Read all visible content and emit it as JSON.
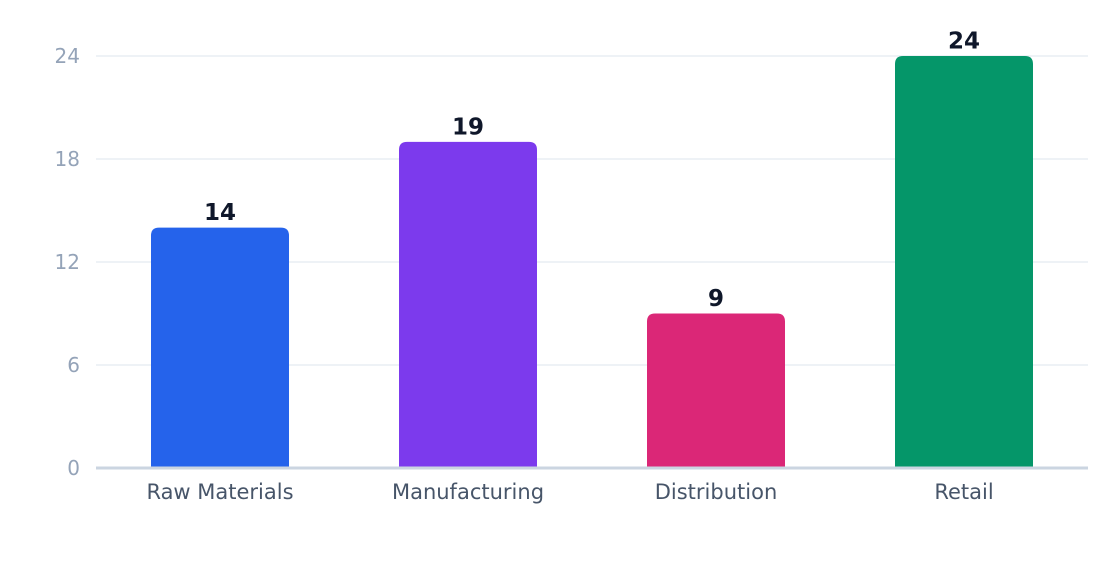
{
  "chart_data": {
    "type": "bar",
    "categories": [
      "Raw Materials",
      "Manufacturing",
      "Distribution",
      "Retail"
    ],
    "values": [
      14,
      19,
      9,
      24
    ],
    "colors": [
      "#2563eb",
      "#7c3aed",
      "#db2777",
      "#059669"
    ],
    "title": "",
    "xlabel": "",
    "ylabel": "",
    "ylim": [
      0,
      24
    ],
    "yticks": [
      0,
      6,
      12,
      18,
      24
    ],
    "grid": true,
    "value_labels": true,
    "legend": "none"
  }
}
